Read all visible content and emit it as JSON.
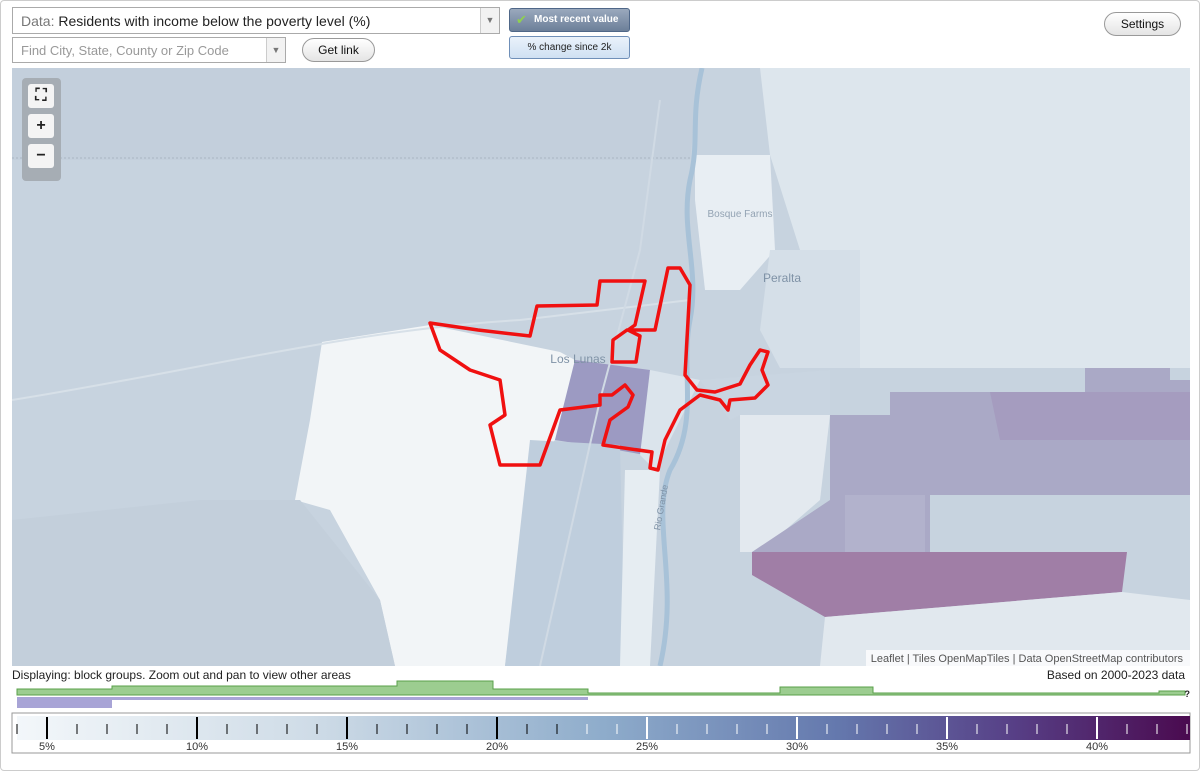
{
  "header": {
    "data_label": "Data:",
    "data_select": "Residents with income below the poverty level (%)",
    "search_placeholder": "Find City, State, County or Zip Code",
    "get_link": "Get link",
    "most_recent": "Most recent value",
    "percent_change": "% change since 2k",
    "settings": "Settings"
  },
  "map": {
    "labels": [
      "Bosque Farms",
      "Peralta",
      "Los Lunas",
      "Rio Grande"
    ],
    "attribution": "Leaflet | Tiles OpenMapTiles | Data OpenStreetMap contributors"
  },
  "footer": {
    "displaying": "Displaying: block groups. Zoom out and pan to view other areas",
    "based_on": "Based on 2000-2023 data",
    "help": "?"
  },
  "legend": {
    "range": [
      4,
      43.1
    ],
    "ticks": [
      {
        "value": 5,
        "label": "5%"
      },
      {
        "value": 10,
        "label": "10%"
      },
      {
        "value": 15,
        "label": "15%"
      },
      {
        "value": 20,
        "label": "20%"
      },
      {
        "value": 25,
        "label": "25%"
      },
      {
        "value": 30,
        "label": "30%"
      },
      {
        "value": 35,
        "label": "35%"
      },
      {
        "value": 40,
        "label": "40%"
      }
    ]
  }
}
